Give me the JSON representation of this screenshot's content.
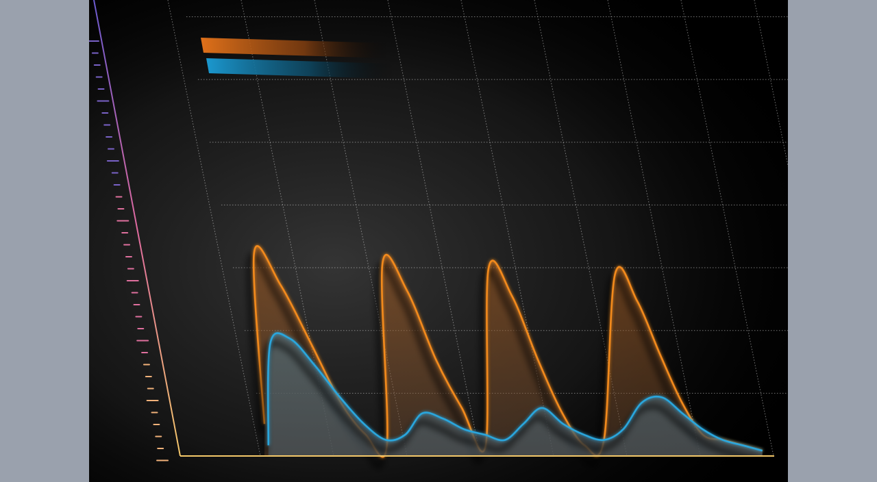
{
  "chart_data": {
    "type": "area",
    "title": "",
    "xlabel": "",
    "ylabel": "",
    "x": [
      0,
      4,
      8,
      12,
      16,
      20,
      24,
      28,
      32,
      36,
      40,
      44,
      48,
      52,
      56,
      60,
      64,
      68,
      72,
      76,
      80,
      84,
      88,
      92,
      96,
      100
    ],
    "ylim": [
      0,
      7
    ],
    "xlim": [
      0,
      100
    ],
    "grid": true,
    "legend": "top-left",
    "series": [
      {
        "color": "#f28a1e",
        "values": [
          0.6,
          3.8,
          3.2,
          2.1,
          1.0,
          0.4,
          0.2,
          3.6,
          3.1,
          1.8,
          0.9,
          0.2,
          3.5,
          3.0,
          1.8,
          0.8,
          0.2,
          0.3,
          3.4,
          2.9,
          1.9,
          1.0,
          0.4,
          0.3,
          0.2,
          0.1
        ]
      },
      {
        "color": "#2aa6dd",
        "values": [
          0.2,
          2.1,
          2.2,
          1.7,
          1.1,
          0.6,
          0.3,
          0.4,
          0.8,
          0.7,
          0.5,
          0.4,
          0.3,
          0.6,
          0.9,
          0.6,
          0.4,
          0.3,
          0.5,
          1.0,
          1.1,
          0.8,
          0.5,
          0.3,
          0.2,
          0.1
        ]
      }
    ]
  }
}
